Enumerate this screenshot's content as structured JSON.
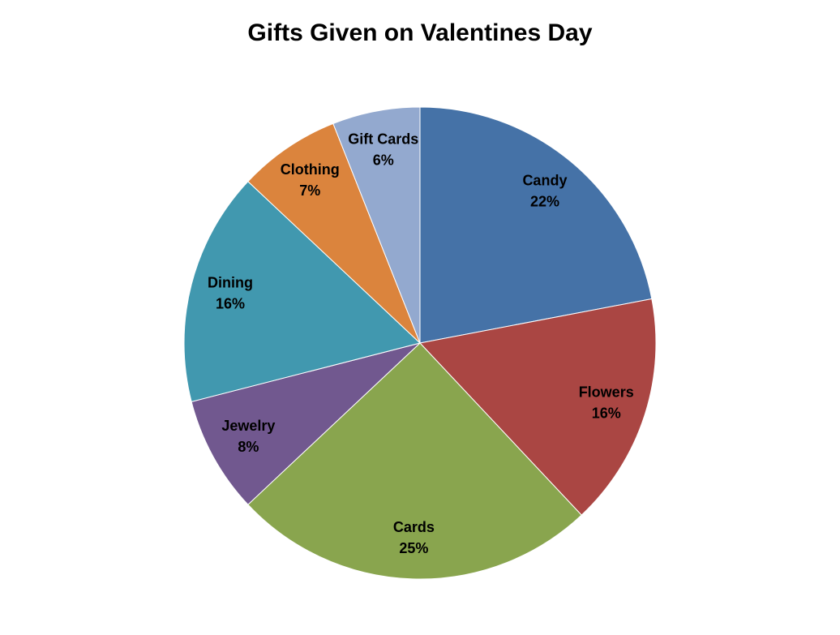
{
  "chart_data": {
    "type": "pie",
    "title": "Gifts Given on Valentines Day",
    "categories": [
      "Candy",
      "Flowers",
      "Cards",
      "Jewelry",
      "Dining",
      "Clothing",
      "Gift Cards"
    ],
    "values": [
      22,
      16,
      25,
      8,
      16,
      7,
      6
    ],
    "value_labels": [
      "22%",
      "16%",
      "25%",
      "8%",
      "16%",
      "7%",
      "6%"
    ],
    "colors": [
      "#4572a7",
      "#aa4643",
      "#89a54e",
      "#71588f",
      "#4198af",
      "#db843d",
      "#93a9cf"
    ]
  }
}
